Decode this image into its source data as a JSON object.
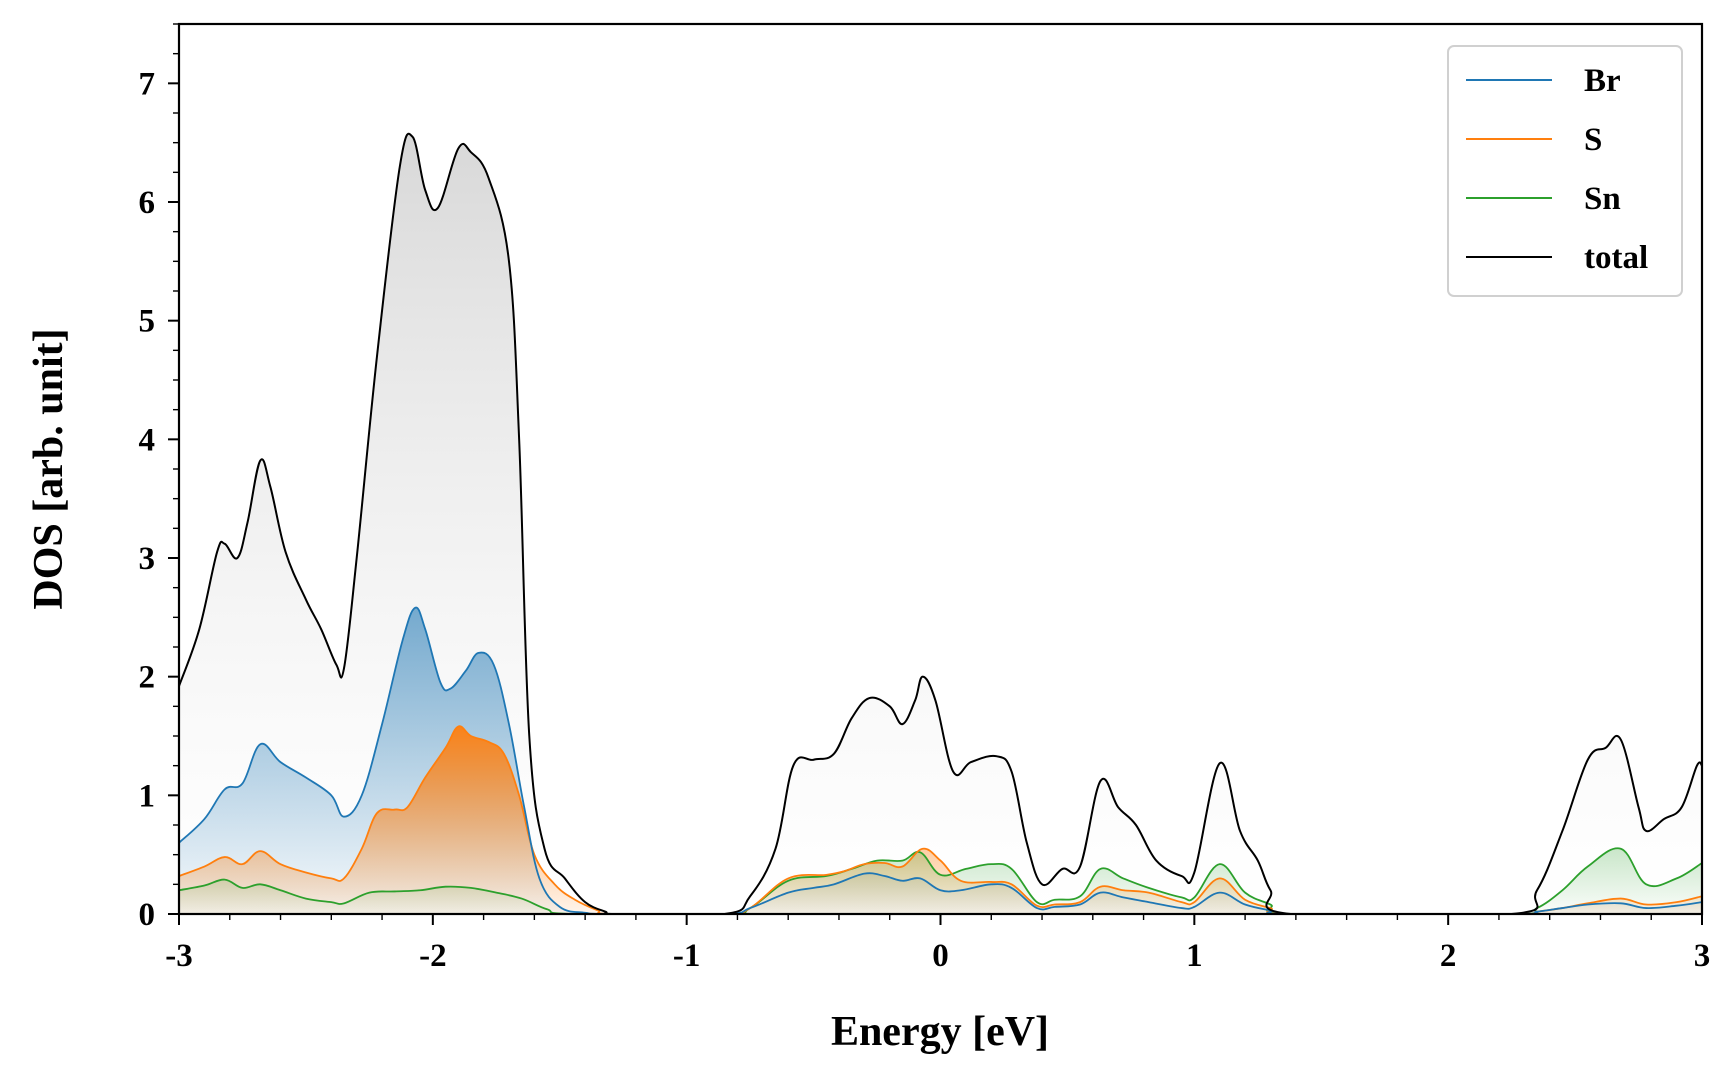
{
  "chart_data": {
    "type": "area",
    "xlabel": "Energy [eV]",
    "ylabel": "DOS [arb. unit]",
    "xlim": [
      -3,
      3
    ],
    "ylim": [
      0,
      7.5
    ],
    "xticks": [
      -3,
      -2,
      -1,
      0,
      1,
      2,
      3
    ],
    "yticks": [
      0,
      1,
      2,
      3,
      4,
      5,
      6,
      7
    ],
    "legend_position": "top-right",
    "series": [
      {
        "name": "Br",
        "color": "#1f77b4",
        "points": [
          [
            -3.0,
            0.6
          ],
          [
            -2.9,
            0.8
          ],
          [
            -2.82,
            1.05
          ],
          [
            -2.75,
            1.1
          ],
          [
            -2.68,
            1.43
          ],
          [
            -2.6,
            1.28
          ],
          [
            -2.5,
            1.15
          ],
          [
            -2.4,
            1.0
          ],
          [
            -2.35,
            0.82
          ],
          [
            -2.28,
            1.0
          ],
          [
            -2.2,
            1.6
          ],
          [
            -2.12,
            2.3
          ],
          [
            -2.07,
            2.58
          ],
          [
            -2.03,
            2.4
          ],
          [
            -1.97,
            1.95
          ],
          [
            -1.93,
            1.9
          ],
          [
            -1.87,
            2.05
          ],
          [
            -1.82,
            2.2
          ],
          [
            -1.76,
            2.1
          ],
          [
            -1.7,
            1.6
          ],
          [
            -1.64,
            0.9
          ],
          [
            -1.58,
            0.3
          ],
          [
            -1.5,
            0.06
          ],
          [
            -1.4,
            0.01
          ],
          [
            -1.3,
            0.0
          ],
          [
            -0.85,
            0.0
          ],
          [
            -0.75,
            0.05
          ],
          [
            -0.6,
            0.18
          ],
          [
            -0.5,
            0.22
          ],
          [
            -0.42,
            0.25
          ],
          [
            -0.3,
            0.34
          ],
          [
            -0.22,
            0.32
          ],
          [
            -0.15,
            0.28
          ],
          [
            -0.08,
            0.3
          ],
          [
            0.0,
            0.2
          ],
          [
            0.08,
            0.2
          ],
          [
            0.2,
            0.25
          ],
          [
            0.28,
            0.22
          ],
          [
            0.38,
            0.05
          ],
          [
            0.45,
            0.06
          ],
          [
            0.55,
            0.08
          ],
          [
            0.63,
            0.18
          ],
          [
            0.72,
            0.14
          ],
          [
            0.82,
            0.1
          ],
          [
            0.95,
            0.05
          ],
          [
            1.0,
            0.06
          ],
          [
            1.1,
            0.18
          ],
          [
            1.2,
            0.08
          ],
          [
            1.3,
            0.03
          ],
          [
            1.38,
            0.0
          ],
          [
            2.25,
            0.0
          ],
          [
            2.35,
            0.02
          ],
          [
            2.45,
            0.05
          ],
          [
            2.55,
            0.08
          ],
          [
            2.68,
            0.09
          ],
          [
            2.78,
            0.05
          ],
          [
            2.9,
            0.07
          ],
          [
            3.0,
            0.1
          ]
        ]
      },
      {
        "name": "S",
        "color": "#ff7f0e",
        "points": [
          [
            -3.0,
            0.32
          ],
          [
            -2.9,
            0.4
          ],
          [
            -2.82,
            0.48
          ],
          [
            -2.75,
            0.42
          ],
          [
            -2.68,
            0.53
          ],
          [
            -2.6,
            0.42
          ],
          [
            -2.5,
            0.35
          ],
          [
            -2.4,
            0.3
          ],
          [
            -2.35,
            0.3
          ],
          [
            -2.28,
            0.55
          ],
          [
            -2.22,
            0.85
          ],
          [
            -2.15,
            0.88
          ],
          [
            -2.1,
            0.9
          ],
          [
            -2.03,
            1.15
          ],
          [
            -1.95,
            1.4
          ],
          [
            -1.9,
            1.58
          ],
          [
            -1.85,
            1.5
          ],
          [
            -1.78,
            1.45
          ],
          [
            -1.72,
            1.35
          ],
          [
            -1.66,
            1.0
          ],
          [
            -1.6,
            0.5
          ],
          [
            -1.52,
            0.25
          ],
          [
            -1.44,
            0.12
          ],
          [
            -1.35,
            0.03
          ],
          [
            -1.3,
            0.0
          ],
          [
            -0.85,
            0.0
          ],
          [
            -0.75,
            0.05
          ],
          [
            -0.6,
            0.3
          ],
          [
            -0.45,
            0.33
          ],
          [
            -0.38,
            0.36
          ],
          [
            -0.3,
            0.42
          ],
          [
            -0.22,
            0.43
          ],
          [
            -0.15,
            0.4
          ],
          [
            -0.07,
            0.55
          ],
          [
            0.0,
            0.45
          ],
          [
            0.08,
            0.28
          ],
          [
            0.2,
            0.27
          ],
          [
            0.28,
            0.25
          ],
          [
            0.38,
            0.07
          ],
          [
            0.45,
            0.08
          ],
          [
            0.55,
            0.1
          ],
          [
            0.63,
            0.23
          ],
          [
            0.72,
            0.2
          ],
          [
            0.82,
            0.18
          ],
          [
            0.95,
            0.1
          ],
          [
            1.0,
            0.1
          ],
          [
            1.1,
            0.3
          ],
          [
            1.2,
            0.12
          ],
          [
            1.3,
            0.05
          ],
          [
            1.38,
            0.0
          ],
          [
            2.25,
            0.0
          ],
          [
            2.35,
            0.02
          ],
          [
            2.45,
            0.05
          ],
          [
            2.55,
            0.09
          ],
          [
            2.68,
            0.13
          ],
          [
            2.78,
            0.08
          ],
          [
            2.9,
            0.1
          ],
          [
            3.0,
            0.15
          ]
        ]
      },
      {
        "name": "Sn",
        "color": "#2ca02c",
        "points": [
          [
            -3.0,
            0.2
          ],
          [
            -2.9,
            0.24
          ],
          [
            -2.82,
            0.29
          ],
          [
            -2.75,
            0.22
          ],
          [
            -2.68,
            0.25
          ],
          [
            -2.6,
            0.2
          ],
          [
            -2.5,
            0.13
          ],
          [
            -2.4,
            0.1
          ],
          [
            -2.35,
            0.09
          ],
          [
            -2.25,
            0.18
          ],
          [
            -2.15,
            0.19
          ],
          [
            -2.05,
            0.2
          ],
          [
            -1.95,
            0.23
          ],
          [
            -1.85,
            0.22
          ],
          [
            -1.75,
            0.18
          ],
          [
            -1.65,
            0.13
          ],
          [
            -1.55,
            0.04
          ],
          [
            -1.45,
            0.0
          ],
          [
            -0.85,
            0.0
          ],
          [
            -0.75,
            0.05
          ],
          [
            -0.6,
            0.28
          ],
          [
            -0.45,
            0.32
          ],
          [
            -0.35,
            0.38
          ],
          [
            -0.25,
            0.45
          ],
          [
            -0.15,
            0.45
          ],
          [
            -0.08,
            0.52
          ],
          [
            0.0,
            0.33
          ],
          [
            0.1,
            0.38
          ],
          [
            0.2,
            0.42
          ],
          [
            0.28,
            0.38
          ],
          [
            0.38,
            0.1
          ],
          [
            0.45,
            0.12
          ],
          [
            0.55,
            0.15
          ],
          [
            0.63,
            0.38
          ],
          [
            0.72,
            0.3
          ],
          [
            0.82,
            0.22
          ],
          [
            0.95,
            0.14
          ],
          [
            1.0,
            0.14
          ],
          [
            1.1,
            0.42
          ],
          [
            1.2,
            0.18
          ],
          [
            1.3,
            0.08
          ],
          [
            1.38,
            0.0
          ],
          [
            2.25,
            0.0
          ],
          [
            2.35,
            0.05
          ],
          [
            2.45,
            0.2
          ],
          [
            2.55,
            0.4
          ],
          [
            2.68,
            0.55
          ],
          [
            2.78,
            0.25
          ],
          [
            2.9,
            0.3
          ],
          [
            3.0,
            0.43
          ]
        ]
      },
      {
        "name": "total",
        "color": "#000000",
        "points": [
          [
            -3.0,
            1.92
          ],
          [
            -2.92,
            2.4
          ],
          [
            -2.85,
            3.05
          ],
          [
            -2.82,
            3.12
          ],
          [
            -2.77,
            3.0
          ],
          [
            -2.73,
            3.3
          ],
          [
            -2.68,
            3.82
          ],
          [
            -2.64,
            3.6
          ],
          [
            -2.58,
            3.05
          ],
          [
            -2.5,
            2.65
          ],
          [
            -2.44,
            2.4
          ],
          [
            -2.38,
            2.1
          ],
          [
            -2.35,
            2.07
          ],
          [
            -2.3,
            3.0
          ],
          [
            -2.22,
            4.7
          ],
          [
            -2.13,
            6.3
          ],
          [
            -2.08,
            6.55
          ],
          [
            -2.03,
            6.1
          ],
          [
            -1.98,
            5.95
          ],
          [
            -1.9,
            6.45
          ],
          [
            -1.85,
            6.42
          ],
          [
            -1.78,
            6.2
          ],
          [
            -1.7,
            5.5
          ],
          [
            -1.66,
            4.0
          ],
          [
            -1.62,
            1.5
          ],
          [
            -1.56,
            0.55
          ],
          [
            -1.48,
            0.3
          ],
          [
            -1.4,
            0.1
          ],
          [
            -1.32,
            0.02
          ],
          [
            -1.28,
            0.0
          ],
          [
            -0.85,
            0.0
          ],
          [
            -0.75,
            0.15
          ],
          [
            -0.65,
            0.55
          ],
          [
            -0.58,
            1.25
          ],
          [
            -0.5,
            1.3
          ],
          [
            -0.42,
            1.35
          ],
          [
            -0.35,
            1.65
          ],
          [
            -0.28,
            1.82
          ],
          [
            -0.2,
            1.75
          ],
          [
            -0.15,
            1.6
          ],
          [
            -0.1,
            1.8
          ],
          [
            -0.07,
            2.0
          ],
          [
            -0.02,
            1.8
          ],
          [
            0.05,
            1.2
          ],
          [
            0.12,
            1.28
          ],
          [
            0.22,
            1.33
          ],
          [
            0.28,
            1.2
          ],
          [
            0.34,
            0.6
          ],
          [
            0.4,
            0.25
          ],
          [
            0.48,
            0.38
          ],
          [
            0.55,
            0.4
          ],
          [
            0.63,
            1.12
          ],
          [
            0.7,
            0.9
          ],
          [
            0.77,
            0.75
          ],
          [
            0.85,
            0.45
          ],
          [
            0.95,
            0.32
          ],
          [
            1.0,
            0.35
          ],
          [
            1.1,
            1.27
          ],
          [
            1.18,
            0.7
          ],
          [
            1.25,
            0.45
          ],
          [
            1.3,
            0.2
          ],
          [
            1.38,
            0.0
          ],
          [
            2.25,
            0.0
          ],
          [
            2.35,
            0.2
          ],
          [
            2.45,
            0.7
          ],
          [
            2.55,
            1.3
          ],
          [
            2.62,
            1.4
          ],
          [
            2.68,
            1.47
          ],
          [
            2.75,
            0.9
          ],
          [
            2.78,
            0.7
          ],
          [
            2.85,
            0.8
          ],
          [
            2.92,
            0.9
          ],
          [
            2.98,
            1.25
          ],
          [
            3.0,
            1.25
          ]
        ]
      }
    ]
  }
}
